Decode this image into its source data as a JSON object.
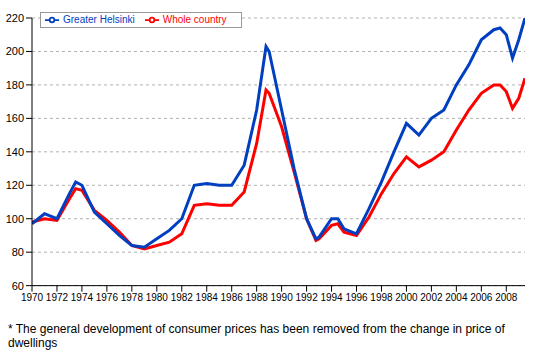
{
  "chart_data": {
    "type": "line",
    "x": [
      1970,
      1971,
      1972,
      1973,
      1973.5,
      1974,
      1975,
      1976,
      1977,
      1978,
      1979,
      1980,
      1981,
      1982,
      1983,
      1984,
      1985,
      1986,
      1987,
      1988,
      1988.75,
      1989,
      1990,
      1991,
      1992,
      1992.75,
      1993,
      1994,
      1994.5,
      1995,
      1996,
      1997,
      1998,
      1999,
      2000,
      2001,
      2002,
      2003,
      2004,
      2005,
      2006,
      2007,
      2007.5,
      2008,
      2008.5,
      2009,
      2009.5
    ],
    "series": [
      {
        "name": "Whole country",
        "color": "#ff0000",
        "values": [
          98,
          100,
          99,
          112,
          118,
          117,
          105,
          99,
          92,
          84,
          82,
          84,
          86,
          91,
          108,
          109,
          108,
          108,
          116,
          145,
          177,
          175,
          155,
          128,
          100,
          87,
          88,
          96,
          97,
          92,
          90,
          101,
          115,
          127,
          137,
          131,
          135,
          140,
          153,
          165,
          175,
          180,
          180,
          176,
          166,
          172,
          184
        ]
      },
      {
        "name": "Greater Helsinki",
        "color": "#0040c0",
        "values": [
          97,
          103,
          100,
          115,
          122,
          120,
          104,
          97,
          90,
          84,
          83,
          88,
          93,
          100,
          120,
          121,
          120,
          120,
          132,
          165,
          203,
          200,
          165,
          130,
          100,
          88,
          89,
          100,
          100,
          94,
          91,
          106,
          122,
          140,
          157,
          150,
          160,
          165,
          180,
          192,
          207,
          213,
          214,
          210,
          196,
          207,
          220
        ]
      }
    ],
    "xlim": [
      1970,
      2009.5
    ],
    "xticks": [
      1970,
      1972,
      1974,
      1976,
      1978,
      1980,
      1982,
      1984,
      1986,
      1988,
      1990,
      1992,
      1994,
      1996,
      1998,
      2000,
      2002,
      2004,
      2006,
      2008
    ],
    "ylim": [
      60,
      220
    ],
    "yticks": [
      60,
      80,
      100,
      120,
      140,
      160,
      180,
      200,
      220
    ],
    "grid": true,
    "legend": "upper left",
    "annotations": [
      "* The general development of consumer prices has been removed from the change in price of dwellings"
    ]
  }
}
